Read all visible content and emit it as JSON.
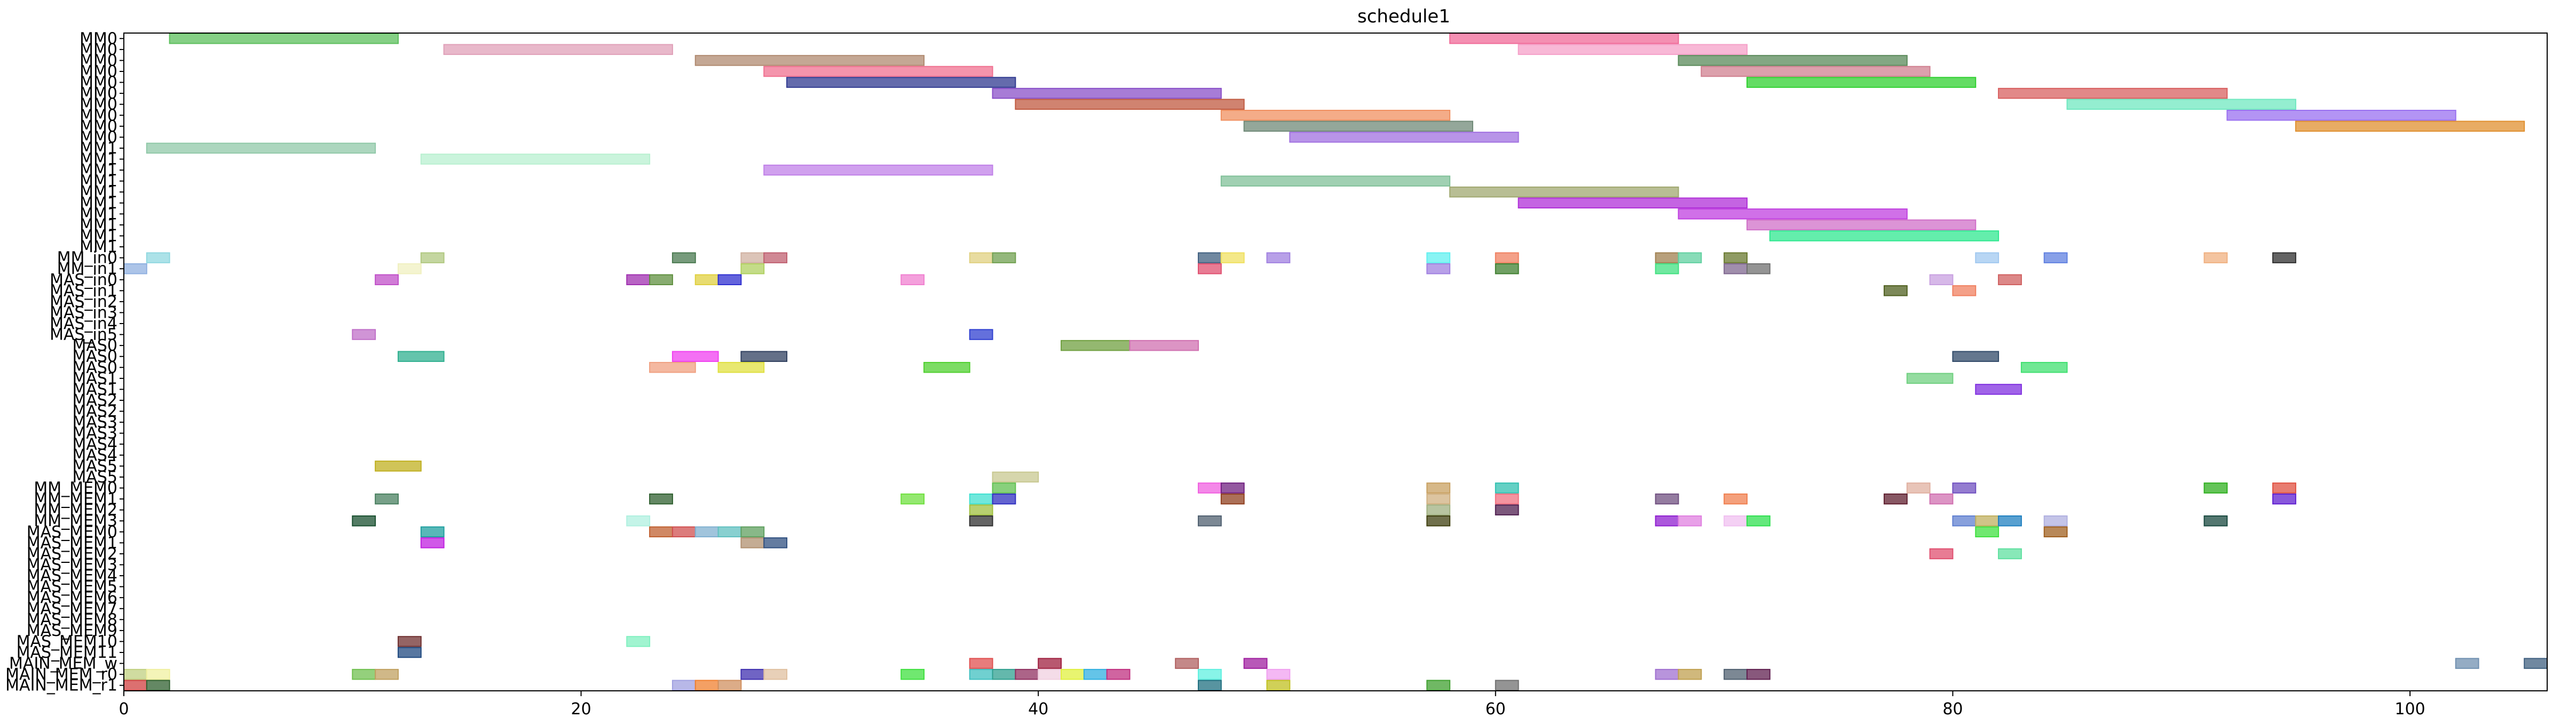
{
  "chart_data": {
    "type": "gantt",
    "title": "schedule1",
    "xlim": [
      0,
      106
    ],
    "xticks": [
      0,
      20,
      40,
      60,
      80,
      100
    ],
    "rows": [
      "MM0",
      "MM0",
      "MM0",
      "MM0",
      "MM0",
      "MM0",
      "MM0",
      "MM0",
      "MM0",
      "MM0",
      "MM1",
      "MM1",
      "MM1",
      "MM1",
      "MM1",
      "MM1",
      "MM1",
      "MM1",
      "MM1",
      "MM1",
      "MM_in0",
      "MM_in1",
      "MAS_in0",
      "MAS_in1",
      "MAS_in2",
      "MAS_in3",
      "MAS_in4",
      "MAS_in5",
      "MAS0",
      "MAS0",
      "MAS0",
      "MAS1",
      "MAS1",
      "MAS2",
      "MAS2",
      "MAS3",
      "MAS3",
      "MAS4",
      "MAS4",
      "MAS5",
      "MAS5",
      "MM_MEM0",
      "MM_MEM1",
      "MM_MEM2",
      "MM_MEM3",
      "MAS_MEM0",
      "MAS_MEM1",
      "MAS_MEM2",
      "MAS_MEM3",
      "MAS_MEM4",
      "MAS_MEM5",
      "MAS_MEM6",
      "MAS_MEM7",
      "MAS_MEM8",
      "MAS_MEM9",
      "MAS_MEM10",
      "MAS_MEM11",
      "MAIN_MEM_w",
      "MAIN_MEM_r0",
      "MAIN_MEM_r1"
    ],
    "tasks": [
      {
        "row": 0,
        "start": 2,
        "end": 12,
        "color": "#5cbf5c"
      },
      {
        "row": 0,
        "start": 58,
        "end": 68,
        "color": "#f06a98"
      },
      {
        "row": 1,
        "start": 14,
        "end": 24,
        "color": "#e0a0b8"
      },
      {
        "row": 1,
        "start": 61,
        "end": 71,
        "color": "#f5a0c8"
      },
      {
        "row": 2,
        "start": 25,
        "end": 35,
        "color": "#b08a70"
      },
      {
        "row": 2,
        "start": 68,
        "end": 78,
        "color": "#5a8a5a"
      },
      {
        "row": 3,
        "start": 28,
        "end": 38,
        "color": "#f07090"
      },
      {
        "row": 3,
        "start": 69,
        "end": 79,
        "color": "#d08090"
      },
      {
        "row": 4,
        "start": 29,
        "end": 39,
        "color": "#303a90"
      },
      {
        "row": 4,
        "start": 71,
        "end": 81,
        "color": "#30d030"
      },
      {
        "row": 5,
        "start": 38,
        "end": 48,
        "color": "#8a50c8"
      },
      {
        "row": 5,
        "start": 82,
        "end": 92,
        "color": "#d86060"
      },
      {
        "row": 6,
        "start": 39,
        "end": 49,
        "color": "#c05a40"
      },
      {
        "row": 6,
        "start": 85,
        "end": 95,
        "color": "#70e8c0"
      },
      {
        "row": 7,
        "start": 48,
        "end": 58,
        "color": "#f09060"
      },
      {
        "row": 7,
        "start": 92,
        "end": 102,
        "color": "#9a70f0"
      },
      {
        "row": 8,
        "start": 49,
        "end": 59,
        "color": "#708a78"
      },
      {
        "row": 8,
        "start": 95,
        "end": 105,
        "color": "#e09030"
      },
      {
        "row": 9,
        "start": 51,
        "end": 61,
        "color": "#a070e0"
      },
      {
        "row": 10,
        "start": 1,
        "end": 11,
        "color": "#90c8a8"
      },
      {
        "row": 11,
        "start": 13,
        "end": 23,
        "color": "#b8f0d0"
      },
      {
        "row": 12,
        "start": 28,
        "end": 38,
        "color": "#c080e8"
      },
      {
        "row": 13,
        "start": 48,
        "end": 58,
        "color": "#80c098"
      },
      {
        "row": 14,
        "start": 58,
        "end": 68,
        "color": "#a0a870"
      },
      {
        "row": 15,
        "start": 61,
        "end": 71,
        "color": "#b030d8"
      },
      {
        "row": 16,
        "start": 68,
        "end": 78,
        "color": "#c040e0"
      },
      {
        "row": 17,
        "start": 71,
        "end": 81,
        "color": "#d070c8"
      },
      {
        "row": 18,
        "start": 72,
        "end": 82,
        "color": "#30e890"
      },
      {
        "row": 20,
        "start": 1,
        "end": 2,
        "color": "#90d8e0"
      },
      {
        "row": 20,
        "start": 13,
        "end": 14,
        "color": "#b0c880"
      },
      {
        "row": 20,
        "start": 24,
        "end": 25,
        "color": "#4a7a50"
      },
      {
        "row": 20,
        "start": 27,
        "end": 28,
        "color": "#d0b0a0"
      },
      {
        "row": 20,
        "start": 28,
        "end": 29,
        "color": "#c06070"
      },
      {
        "row": 20,
        "start": 37,
        "end": 38,
        "color": "#e0d080"
      },
      {
        "row": 20,
        "start": 38,
        "end": 39,
        "color": "#70a050"
      },
      {
        "row": 20,
        "start": 47,
        "end": 48,
        "color": "#406080"
      },
      {
        "row": 20,
        "start": 48,
        "end": 49,
        "color": "#f0e060"
      },
      {
        "row": 20,
        "start": 50,
        "end": 51,
        "color": "#a080e0"
      },
      {
        "row": 20,
        "start": 57,
        "end": 58,
        "color": "#60f0f0"
      },
      {
        "row": 20,
        "start": 60,
        "end": 61,
        "color": "#f08060"
      },
      {
        "row": 20,
        "start": 67,
        "end": 68,
        "color": "#a08050"
      },
      {
        "row": 20,
        "start": 68,
        "end": 69,
        "color": "#60d0a0"
      },
      {
        "row": 20,
        "start": 70,
        "end": 71,
        "color": "#6a7a30"
      },
      {
        "row": 20,
        "start": 81,
        "end": 82,
        "color": "#a0c8f0"
      },
      {
        "row": 20,
        "start": 84,
        "end": 85,
        "color": "#6080e0"
      },
      {
        "row": 20,
        "start": 91,
        "end": 92,
        "color": "#f0b080"
      },
      {
        "row": 20,
        "start": 94,
        "end": 95,
        "color": "#303030"
      },
      {
        "row": 21,
        "start": 0,
        "end": 1,
        "color": "#90b0e0"
      },
      {
        "row": 21,
        "start": 12,
        "end": 13,
        "color": "#f0f0c0"
      },
      {
        "row": 21,
        "start": 27,
        "end": 28,
        "color": "#b0d060"
      },
      {
        "row": 21,
        "start": 47,
        "end": 48,
        "color": "#e05070"
      },
      {
        "row": 21,
        "start": 57,
        "end": 58,
        "color": "#a080e0"
      },
      {
        "row": 21,
        "start": 60,
        "end": 61,
        "color": "#408030"
      },
      {
        "row": 21,
        "start": 67,
        "end": 68,
        "color": "#40e080"
      },
      {
        "row": 21,
        "start": 70,
        "end": 71,
        "color": "#806890"
      },
      {
        "row": 21,
        "start": 71,
        "end": 72,
        "color": "#707070"
      },
      {
        "row": 22,
        "start": 11,
        "end": 12,
        "color": "#c050c8"
      },
      {
        "row": 22,
        "start": 22,
        "end": 23,
        "color": "#a030b0"
      },
      {
        "row": 22,
        "start": 23,
        "end": 24,
        "color": "#609040"
      },
      {
        "row": 22,
        "start": 25,
        "end": 26,
        "color": "#e0d040"
      },
      {
        "row": 22,
        "start": 26,
        "end": 27,
        "color": "#3030d0"
      },
      {
        "row": 22,
        "start": 34,
        "end": 35,
        "color": "#f080d0"
      },
      {
        "row": 22,
        "start": 79,
        "end": 80,
        "color": "#c8a0e0"
      },
      {
        "row": 22,
        "start": 82,
        "end": 83,
        "color": "#d06060"
      },
      {
        "row": 23,
        "start": 77,
        "end": 78,
        "color": "#506020"
      },
      {
        "row": 23,
        "start": 80,
        "end": 81,
        "color": "#f08060"
      },
      {
        "row": 27,
        "start": 10,
        "end": 11,
        "color": "#c070c8"
      },
      {
        "row": 27,
        "start": 37,
        "end": 38,
        "color": "#3040d0"
      },
      {
        "row": 28,
        "start": 41,
        "end": 44,
        "color": "#70a040"
      },
      {
        "row": 28,
        "start": 44,
        "end": 47,
        "color": "#d070b0"
      },
      {
        "row": 29,
        "start": 12,
        "end": 14,
        "color": "#30b090"
      },
      {
        "row": 29,
        "start": 24,
        "end": 26,
        "color": "#f040f0"
      },
      {
        "row": 29,
        "start": 27,
        "end": 29,
        "color": "#304060"
      },
      {
        "row": 29,
        "start": 80,
        "end": 82,
        "color": "#304a68"
      },
      {
        "row": 30,
        "start": 23,
        "end": 25,
        "color": "#f0a080"
      },
      {
        "row": 30,
        "start": 26,
        "end": 28,
        "color": "#e0e040"
      },
      {
        "row": 30,
        "start": 35,
        "end": 37,
        "color": "#50d030"
      },
      {
        "row": 30,
        "start": 83,
        "end": 85,
        "color": "#40e070"
      },
      {
        "row": 31,
        "start": 78,
        "end": 80,
        "color": "#70d080"
      },
      {
        "row": 32,
        "start": 81,
        "end": 83,
        "color": "#8030e0"
      },
      {
        "row": 39,
        "start": 11,
        "end": 13,
        "color": "#c0b020"
      },
      {
        "row": 40,
        "start": 38,
        "end": 40,
        "color": "#c8c890"
      },
      {
        "row": 41,
        "start": 38,
        "end": 39,
        "color": "#60c050"
      },
      {
        "row": 41,
        "start": 47,
        "end": 48,
        "color": "#f060e0"
      },
      {
        "row": 41,
        "start": 48,
        "end": 49,
        "color": "#702080"
      },
      {
        "row": 41,
        "start": 57,
        "end": 58,
        "color": "#c8a060"
      },
      {
        "row": 41,
        "start": 60,
        "end": 61,
        "color": "#30c0b0"
      },
      {
        "row": 41,
        "start": 78,
        "end": 79,
        "color": "#e0b0a0"
      },
      {
        "row": 41,
        "start": 80,
        "end": 81,
        "color": "#7050c0"
      },
      {
        "row": 41,
        "start": 91,
        "end": 92,
        "color": "#30b020"
      },
      {
        "row": 41,
        "start": 94,
        "end": 95,
        "color": "#e05040"
      },
      {
        "row": 42,
        "start": 11,
        "end": 12,
        "color": "#4a8060"
      },
      {
        "row": 42,
        "start": 23,
        "end": 24,
        "color": "#306030"
      },
      {
        "row": 42,
        "start": 34,
        "end": 35,
        "color": "#70e040"
      },
      {
        "row": 42,
        "start": 37,
        "end": 38,
        "color": "#40e0d0"
      },
      {
        "row": 42,
        "start": 38,
        "end": 39,
        "color": "#3030c0"
      },
      {
        "row": 42,
        "start": 48,
        "end": 49,
        "color": "#904020"
      },
      {
        "row": 42,
        "start": 57,
        "end": 58,
        "color": "#d0b080"
      },
      {
        "row": 42,
        "start": 60,
        "end": 61,
        "color": "#f07080"
      },
      {
        "row": 42,
        "start": 67,
        "end": 68,
        "color": "#705080"
      },
      {
        "row": 42,
        "start": 70,
        "end": 71,
        "color": "#f08050"
      },
      {
        "row": 42,
        "start": 77,
        "end": 78,
        "color": "#602030"
      },
      {
        "row": 42,
        "start": 79,
        "end": 80,
        "color": "#d070b0"
      },
      {
        "row": 42,
        "start": 94,
        "end": 95,
        "color": "#6020d0"
      },
      {
        "row": 43,
        "start": 37,
        "end": 38,
        "color": "#a0c040"
      },
      {
        "row": 43,
        "start": 57,
        "end": 58,
        "color": "#a0b080"
      },
      {
        "row": 43,
        "start": 60,
        "end": 61,
        "color": "#502050"
      },
      {
        "row": 44,
        "start": 10,
        "end": 11,
        "color": "#1a5030"
      },
      {
        "row": 44,
        "start": 22,
        "end": 23,
        "color": "#b0f0e0"
      },
      {
        "row": 44,
        "start": 37,
        "end": 38,
        "color": "#303030"
      },
      {
        "row": 44,
        "start": 47,
        "end": 48,
        "color": "#506070"
      },
      {
        "row": 44,
        "start": 57,
        "end": 58,
        "color": "#404010"
      },
      {
        "row": 44,
        "start": 67,
        "end": 68,
        "color": "#9020d0"
      },
      {
        "row": 44,
        "start": 68,
        "end": 69,
        "color": "#e080e0"
      },
      {
        "row": 44,
        "start": 70,
        "end": 71,
        "color": "#f0c0f0"
      },
      {
        "row": 44,
        "start": 71,
        "end": 72,
        "color": "#30e050"
      },
      {
        "row": 44,
        "start": 80,
        "end": 81,
        "color": "#6080d0"
      },
      {
        "row": 44,
        "start": 81,
        "end": 82,
        "color": "#c0b060"
      },
      {
        "row": 44,
        "start": 82,
        "end": 83,
        "color": "#2080c0"
      },
      {
        "row": 44,
        "start": 84,
        "end": 85,
        "color": "#b0b0e0"
      },
      {
        "row": 44,
        "start": 91,
        "end": 92,
        "color": "#1a4a40"
      },
      {
        "row": 45,
        "start": 13,
        "end": 14,
        "color": "#20a0a0"
      },
      {
        "row": 45,
        "start": 23,
        "end": 24,
        "color": "#c06030"
      },
      {
        "row": 45,
        "start": 24,
        "end": 25,
        "color": "#d05050"
      },
      {
        "row": 45,
        "start": 25,
        "end": 26,
        "color": "#80b0d0"
      },
      {
        "row": 45,
        "start": 26,
        "end": 27,
        "color": "#60c0c0"
      },
      {
        "row": 45,
        "start": 27,
        "end": 28,
        "color": "#60a060"
      },
      {
        "row": 45,
        "start": 81,
        "end": 82,
        "color": "#40e040"
      },
      {
        "row": 45,
        "start": 84,
        "end": 85,
        "color": "#a06020"
      },
      {
        "row": 46,
        "start": 13,
        "end": 14,
        "color": "#c020e0"
      },
      {
        "row": 46,
        "start": 27,
        "end": 28,
        "color": "#b09070"
      },
      {
        "row": 46,
        "start": 28,
        "end": 29,
        "color": "#305080"
      },
      {
        "row": 47,
        "start": 79,
        "end": 80,
        "color": "#e05070"
      },
      {
        "row": 47,
        "start": 82,
        "end": 83,
        "color": "#60e0a0"
      },
      {
        "row": 55,
        "start": 12,
        "end": 13,
        "color": "#703030"
      },
      {
        "row": 55,
        "start": 22,
        "end": 23,
        "color": "#80f0c0"
      },
      {
        "row": 56,
        "start": 12,
        "end": 13,
        "color": "#204a80"
      },
      {
        "row": 57,
        "start": 37,
        "end": 38,
        "color": "#e05050"
      },
      {
        "row": 57,
        "start": 40,
        "end": 41,
        "color": "#a02040"
      },
      {
        "row": 57,
        "start": 46,
        "end": 47,
        "color": "#b06060"
      },
      {
        "row": 57,
        "start": 49,
        "end": 50,
        "color": "#a020a0"
      },
      {
        "row": 57,
        "start": 102,
        "end": 103,
        "color": "#7090b0"
      },
      {
        "row": 57,
        "start": 105,
        "end": 106,
        "color": "#406080"
      },
      {
        "row": 58,
        "start": 0,
        "end": 1,
        "color": "#c0d080"
      },
      {
        "row": 58,
        "start": 1,
        "end": 2,
        "color": "#f0f0a0"
      },
      {
        "row": 58,
        "start": 10,
        "end": 11,
        "color": "#70c050"
      },
      {
        "row": 58,
        "start": 11,
        "end": 12,
        "color": "#c0a060"
      },
      {
        "row": 58,
        "start": 27,
        "end": 28,
        "color": "#4030b0"
      },
      {
        "row": 58,
        "start": 28,
        "end": 29,
        "color": "#e0c0a0"
      },
      {
        "row": 58,
        "start": 34,
        "end": 35,
        "color": "#40e040"
      },
      {
        "row": 58,
        "start": 37,
        "end": 38,
        "color": "#40c0c0"
      },
      {
        "row": 58,
        "start": 38,
        "end": 39,
        "color": "#30a090"
      },
      {
        "row": 58,
        "start": 39,
        "end": 40,
        "color": "#903060"
      },
      {
        "row": 58,
        "start": 40,
        "end": 41,
        "color": "#f0d0e0"
      },
      {
        "row": 58,
        "start": 41,
        "end": 42,
        "color": "#e0f040"
      },
      {
        "row": 58,
        "start": 42,
        "end": 43,
        "color": "#30b0e0"
      },
      {
        "row": 58,
        "start": 43,
        "end": 44,
        "color": "#c03080"
      },
      {
        "row": 58,
        "start": 47,
        "end": 48,
        "color": "#60f0e0"
      },
      {
        "row": 58,
        "start": 50,
        "end": 51,
        "color": "#f0a0f0"
      },
      {
        "row": 58,
        "start": 67,
        "end": 68,
        "color": "#a070d0"
      },
      {
        "row": 58,
        "start": 68,
        "end": 69,
        "color": "#c0a050"
      },
      {
        "row": 58,
        "start": 70,
        "end": 71,
        "color": "#506070"
      },
      {
        "row": 58,
        "start": 71,
        "end": 72,
        "color": "#602050"
      },
      {
        "row": 59,
        "start": 0,
        "end": 1,
        "color": "#d04040"
      },
      {
        "row": 59,
        "start": 1,
        "end": 2,
        "color": "#306030"
      },
      {
        "row": 59,
        "start": 24,
        "end": 25,
        "color": "#a0a0e0"
      },
      {
        "row": 59,
        "start": 25,
        "end": 26,
        "color": "#f08030"
      },
      {
        "row": 59,
        "start": 26,
        "end": 27,
        "color": "#d09060"
      },
      {
        "row": 59,
        "start": 47,
        "end": 48,
        "color": "#207080"
      },
      {
        "row": 59,
        "start": 50,
        "end": 51,
        "color": "#c0c020"
      },
      {
        "row": 59,
        "start": 57,
        "end": 58,
        "color": "#40a030"
      },
      {
        "row": 59,
        "start": 60,
        "end": 61,
        "color": "#707070"
      }
    ]
  }
}
